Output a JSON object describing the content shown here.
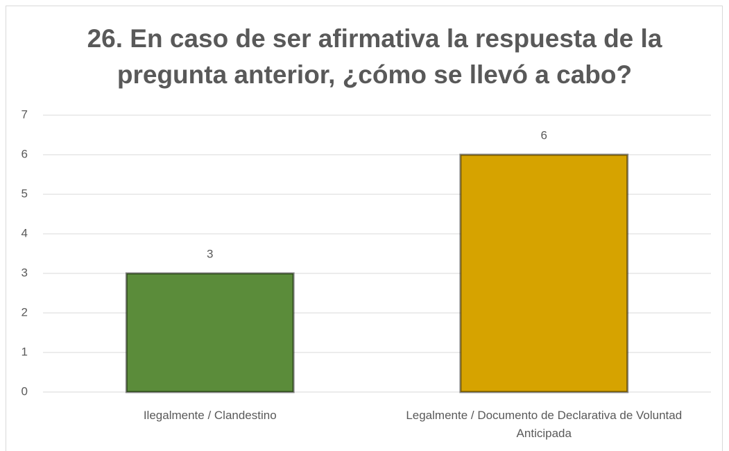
{
  "chart_data": {
    "type": "bar",
    "title": "26. En caso de ser afirmativa la respuesta de la pregunta anterior, ¿cómo se llevó a cabo?",
    "categories": [
      "Ilegalmente / Clandestino",
      "Legalmente / Documento de Declarativa de Voluntad Anticipada"
    ],
    "values": [
      3,
      6
    ],
    "colors": [
      "#5b8c3a",
      "#d6a300"
    ],
    "ylim": [
      0,
      7
    ],
    "yticks": [
      0,
      1,
      2,
      3,
      4,
      5,
      6,
      7
    ],
    "grid": true
  }
}
